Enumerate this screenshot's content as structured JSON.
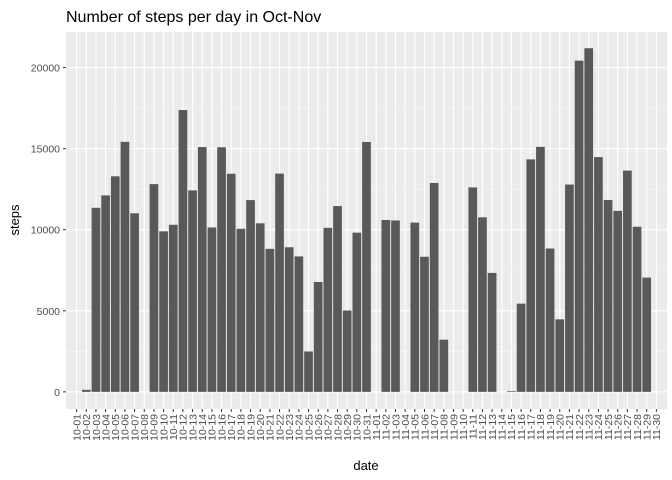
{
  "chart_data": {
    "type": "bar",
    "title": "Number of steps per day in Oct-Nov",
    "xlabel": "date",
    "ylabel": "steps",
    "ylim": [
      -1057,
      22194
    ],
    "yticks": [
      0,
      5000,
      10000,
      15000,
      20000
    ],
    "ytick_labels": [
      "0",
      "5000",
      "10000",
      "15000",
      "20000"
    ],
    "grid": true,
    "colors": {
      "panel": "#ebebeb",
      "grid_major": "#ffffff",
      "bar": "#595959"
    },
    "categories": [
      "10-01",
      "10-02",
      "10-03",
      "10-04",
      "10-05",
      "10-06",
      "10-07",
      "10-08",
      "10-09",
      "10-10",
      "10-11",
      "10-12",
      "10-13",
      "10-14",
      "10-15",
      "10-16",
      "10-17",
      "10-18",
      "10-19",
      "10-20",
      "10-21",
      "10-22",
      "10-23",
      "10-24",
      "10-25",
      "10-26",
      "10-27",
      "10-28",
      "10-29",
      "10-30",
      "10-31",
      "11-01",
      "11-02",
      "11-03",
      "11-04",
      "11-05",
      "11-06",
      "11-07",
      "11-08",
      "11-09",
      "11-10",
      "11-11",
      "11-12",
      "11-13",
      "11-14",
      "11-15",
      "11-16",
      "11-17",
      "11-18",
      "11-19",
      "11-20",
      "11-21",
      "11-22",
      "11-23",
      "11-24",
      "11-25",
      "11-26",
      "11-27",
      "11-28",
      "11-29",
      "11-30"
    ],
    "values": [
      0,
      126,
      11352,
      12116,
      13294,
      15420,
      11015,
      0,
      12811,
      9900,
      10304,
      17382,
      12426,
      15098,
      10139,
      15084,
      13452,
      10056,
      11829,
      10395,
      8821,
      13460,
      8918,
      8355,
      2492,
      6778,
      10119,
      11458,
      5018,
      9819,
      15414,
      0,
      10600,
      10571,
      0,
      10439,
      8334,
      12883,
      3219,
      0,
      0,
      12608,
      10765,
      7336,
      0,
      41,
      5441,
      14339,
      15110,
      8841,
      4472,
      12787,
      20427,
      21194,
      14478,
      11834,
      11162,
      13646,
      10183,
      7047,
      0
    ]
  }
}
